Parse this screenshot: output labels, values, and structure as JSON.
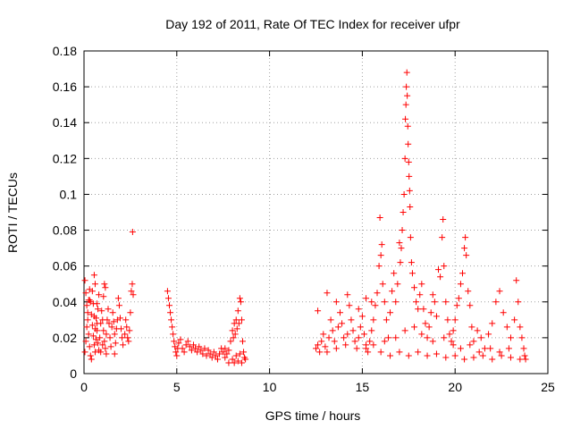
{
  "chart_data": {
    "type": "scatter",
    "title": "Day 192 of 2011, Rate Of TEC Index for receiver ufpr",
    "xlabel": "GPS time / hours",
    "ylabel": "ROTI / TECUs",
    "xlim": [
      0,
      25
    ],
    "ylim": [
      0,
      0.18
    ],
    "xticks": [
      0,
      5,
      10,
      15,
      20,
      25
    ],
    "yticks": [
      0,
      0.02,
      0.04,
      0.06,
      0.08,
      0.1,
      0.12,
      0.14,
      0.16,
      0.18
    ],
    "xtick_labels": [
      "0",
      "5",
      "10",
      "15",
      "20",
      "25"
    ],
    "ytick_labels": [
      "0",
      "0.02",
      "0.04",
      "0.06",
      "0.08",
      "0.1",
      "0.12",
      "0.14",
      "0.16",
      "0.18"
    ],
    "grid": true,
    "marker": "+",
    "color": "#ff0000",
    "series": [
      {
        "points": [
          [
            0.05,
            0.052
          ],
          [
            0.1,
            0.045
          ],
          [
            0.15,
            0.038
          ],
          [
            0.2,
            0.03
          ],
          [
            0.25,
            0.022
          ],
          [
            0.3,
            0.015
          ],
          [
            0.35,
            0.01
          ],
          [
            0.4,
            0.008
          ],
          [
            0.05,
            0.012
          ],
          [
            0.1,
            0.018
          ],
          [
            0.15,
            0.026
          ],
          [
            0.2,
            0.034
          ],
          [
            0.25,
            0.041
          ],
          [
            0.3,
            0.047
          ],
          [
            0.35,
            0.04
          ],
          [
            0.4,
            0.033
          ],
          [
            0.45,
            0.027
          ],
          [
            0.5,
            0.021
          ],
          [
            0.55,
            0.016
          ],
          [
            0.6,
            0.012
          ],
          [
            0.65,
            0.019
          ],
          [
            0.7,
            0.028
          ],
          [
            0.75,
            0.036
          ],
          [
            0.8,
            0.044
          ],
          [
            0.45,
            0.046
          ],
          [
            0.5,
            0.039
          ],
          [
            0.55,
            0.032
          ],
          [
            0.6,
            0.025
          ],
          [
            0.65,
            0.031
          ],
          [
            0.7,
            0.024
          ],
          [
            0.75,
            0.017
          ],
          [
            0.8,
            0.013
          ],
          [
            0.85,
            0.02
          ],
          [
            0.9,
            0.028
          ],
          [
            0.95,
            0.035
          ],
          [
            1.0,
            0.03
          ],
          [
            1.05,
            0.024
          ],
          [
            1.1,
            0.018
          ],
          [
            1.15,
            0.014
          ],
          [
            1.2,
            0.022
          ],
          [
            0.55,
            0.055
          ],
          [
            0.6,
            0.05
          ],
          [
            0.9,
            0.012
          ],
          [
            1.0,
            0.016
          ],
          [
            1.1,
            0.05
          ],
          [
            1.15,
            0.048
          ],
          [
            1.25,
            0.03
          ],
          [
            1.3,
            0.036
          ],
          [
            1.35,
            0.028
          ],
          [
            1.4,
            0.02
          ],
          [
            1.45,
            0.015
          ],
          [
            1.5,
            0.026
          ],
          [
            1.55,
            0.034
          ],
          [
            1.6,
            0.029
          ],
          [
            1.65,
            0.022
          ],
          [
            1.7,
            0.017
          ],
          [
            1.75,
            0.025
          ],
          [
            1.8,
            0.03
          ],
          [
            1.85,
            0.042
          ],
          [
            1.9,
            0.038
          ],
          [
            1.95,
            0.031
          ],
          [
            2.0,
            0.025
          ],
          [
            2.05,
            0.02
          ],
          [
            2.1,
            0.016
          ],
          [
            2.2,
            0.022
          ],
          [
            2.25,
            0.03
          ],
          [
            2.3,
            0.026
          ],
          [
            2.35,
            0.02
          ],
          [
            2.4,
            0.018
          ],
          [
            2.45,
            0.024
          ],
          [
            2.5,
            0.034
          ],
          [
            2.55,
            0.046
          ],
          [
            2.6,
            0.05
          ],
          [
            2.62,
            0.079
          ],
          [
            2.65,
            0.044
          ],
          [
            1.65,
            0.011
          ],
          [
            1.2,
            0.011
          ],
          [
            0.3,
            0.041
          ],
          [
            0.7,
            0.039
          ],
          [
            1.05,
            0.043
          ],
          [
            4.5,
            0.046
          ],
          [
            4.55,
            0.042
          ],
          [
            4.6,
            0.038
          ],
          [
            4.65,
            0.034
          ],
          [
            4.7,
            0.03
          ],
          [
            4.75,
            0.026
          ],
          [
            4.8,
            0.022
          ],
          [
            4.85,
            0.018
          ],
          [
            4.9,
            0.015
          ],
          [
            4.95,
            0.012
          ],
          [
            5.0,
            0.01
          ],
          [
            5.05,
            0.014
          ],
          [
            5.1,
            0.017
          ],
          [
            5.2,
            0.019
          ],
          [
            5.3,
            0.014
          ],
          [
            5.4,
            0.012
          ],
          [
            5.5,
            0.016
          ],
          [
            5.6,
            0.018
          ],
          [
            5.7,
            0.015
          ],
          [
            5.8,
            0.013
          ],
          [
            5.9,
            0.016
          ],
          [
            6.0,
            0.014
          ],
          [
            6.1,
            0.012
          ],
          [
            6.2,
            0.015
          ],
          [
            6.3,
            0.013
          ],
          [
            6.4,
            0.011
          ],
          [
            6.5,
            0.014
          ],
          [
            6.6,
            0.01
          ],
          [
            6.7,
            0.013
          ],
          [
            6.8,
            0.011
          ],
          [
            6.9,
            0.009
          ],
          [
            7.0,
            0.012
          ],
          [
            7.1,
            0.01
          ],
          [
            7.2,
            0.008
          ],
          [
            7.3,
            0.011
          ],
          [
            7.4,
            0.014
          ],
          [
            7.5,
            0.012
          ],
          [
            7.6,
            0.009
          ],
          [
            7.7,
            0.011
          ],
          [
            7.8,
            0.013
          ],
          [
            7.9,
            0.018
          ],
          [
            8.0,
            0.024
          ],
          [
            8.05,
            0.02
          ],
          [
            8.1,
            0.028
          ],
          [
            8.15,
            0.022
          ],
          [
            8.2,
            0.03
          ],
          [
            8.25,
            0.025
          ],
          [
            8.3,
            0.035
          ],
          [
            8.35,
            0.028
          ],
          [
            8.4,
            0.042
          ],
          [
            8.45,
            0.04
          ],
          [
            8.5,
            0.03
          ],
          [
            8.55,
            0.018
          ],
          [
            8.6,
            0.012
          ],
          [
            8.65,
            0.009
          ],
          [
            8.7,
            0.008
          ],
          [
            8.0,
            0.008
          ],
          [
            8.1,
            0.006
          ],
          [
            8.2,
            0.01
          ],
          [
            8.3,
            0.007
          ],
          [
            8.4,
            0.011
          ],
          [
            8.5,
            0.006
          ],
          [
            7.8,
            0.006
          ],
          [
            7.6,
            0.014
          ],
          [
            12.5,
            0.014
          ],
          [
            12.6,
            0.016
          ],
          [
            12.7,
            0.012
          ],
          [
            12.8,
            0.018
          ],
          [
            12.9,
            0.022
          ],
          [
            13.0,
            0.015
          ],
          [
            13.1,
            0.012
          ],
          [
            13.2,
            0.02
          ],
          [
            13.3,
            0.03
          ],
          [
            13.4,
            0.024
          ],
          [
            13.5,
            0.018
          ],
          [
            13.6,
            0.014
          ],
          [
            13.7,
            0.026
          ],
          [
            13.8,
            0.034
          ],
          [
            13.9,
            0.028
          ],
          [
            14.0,
            0.02
          ],
          [
            14.1,
            0.016
          ],
          [
            14.2,
            0.022
          ],
          [
            14.3,
            0.038
          ],
          [
            14.4,
            0.03
          ],
          [
            14.5,
            0.024
          ],
          [
            14.6,
            0.018
          ],
          [
            14.7,
            0.014
          ],
          [
            14.8,
            0.02
          ],
          [
            14.9,
            0.026
          ],
          [
            15.0,
            0.032
          ],
          [
            15.1,
            0.022
          ],
          [
            15.2,
            0.016
          ],
          [
            15.3,
            0.012
          ],
          [
            15.4,
            0.018
          ],
          [
            15.5,
            0.024
          ],
          [
            15.6,
            0.03
          ],
          [
            12.6,
            0.035
          ],
          [
            13.1,
            0.045
          ],
          [
            13.6,
            0.04
          ],
          [
            14.2,
            0.044
          ],
          [
            14.8,
            0.036
          ],
          [
            15.2,
            0.042
          ],
          [
            15.5,
            0.04
          ],
          [
            15.7,
            0.038
          ],
          [
            15.8,
            0.045
          ],
          [
            15.9,
            0.06
          ],
          [
            15.95,
            0.087
          ],
          [
            16.0,
            0.066
          ],
          [
            16.05,
            0.072
          ],
          [
            16.1,
            0.05
          ],
          [
            16.2,
            0.04
          ],
          [
            16.3,
            0.03
          ],
          [
            16.4,
            0.02
          ],
          [
            16.5,
            0.034
          ],
          [
            16.6,
            0.046
          ],
          [
            16.7,
            0.056
          ],
          [
            16.8,
            0.04
          ],
          [
            16.9,
            0.05
          ],
          [
            17.0,
            0.073
          ],
          [
            17.05,
            0.062
          ],
          [
            17.1,
            0.07
          ],
          [
            17.15,
            0.08
          ],
          [
            17.2,
            0.09
          ],
          [
            17.25,
            0.1
          ],
          [
            17.3,
            0.12
          ],
          [
            17.32,
            0.142
          ],
          [
            17.35,
            0.15
          ],
          [
            17.37,
            0.16
          ],
          [
            17.4,
            0.168
          ],
          [
            17.42,
            0.155
          ],
          [
            17.45,
            0.138
          ],
          [
            17.47,
            0.128
          ],
          [
            17.5,
            0.118
          ],
          [
            17.52,
            0.11
          ],
          [
            17.55,
            0.102
          ],
          [
            17.57,
            0.093
          ],
          [
            17.6,
            0.076
          ],
          [
            17.65,
            0.062
          ],
          [
            17.7,
            0.056
          ],
          [
            17.8,
            0.048
          ],
          [
            17.9,
            0.04
          ],
          [
            18.0,
            0.036
          ],
          [
            18.1,
            0.044
          ],
          [
            18.2,
            0.05
          ],
          [
            18.3,
            0.036
          ],
          [
            18.4,
            0.028
          ],
          [
            18.5,
            0.02
          ],
          [
            18.6,
            0.026
          ],
          [
            18.7,
            0.034
          ],
          [
            18.8,
            0.044
          ],
          [
            18.9,
            0.04
          ],
          [
            19.0,
            0.032
          ],
          [
            19.1,
            0.058
          ],
          [
            19.2,
            0.054
          ],
          [
            19.3,
            0.076
          ],
          [
            19.35,
            0.086
          ],
          [
            19.4,
            0.06
          ],
          [
            19.5,
            0.04
          ],
          [
            19.6,
            0.03
          ],
          [
            19.7,
            0.022
          ],
          [
            19.8,
            0.018
          ],
          [
            19.9,
            0.024
          ],
          [
            20.0,
            0.03
          ],
          [
            20.1,
            0.038
          ],
          [
            20.2,
            0.042
          ],
          [
            20.3,
            0.05
          ],
          [
            20.4,
            0.056
          ],
          [
            20.5,
            0.07
          ],
          [
            20.55,
            0.076
          ],
          [
            20.6,
            0.066
          ],
          [
            20.7,
            0.046
          ],
          [
            20.8,
            0.038
          ],
          [
            20.9,
            0.026
          ],
          [
            21.0,
            0.018
          ],
          [
            21.2,
            0.024
          ],
          [
            21.4,
            0.02
          ],
          [
            21.6,
            0.014
          ],
          [
            21.8,
            0.022
          ],
          [
            22.0,
            0.028
          ],
          [
            22.2,
            0.04
          ],
          [
            22.4,
            0.046
          ],
          [
            22.6,
            0.034
          ],
          [
            22.8,
            0.026
          ],
          [
            23.0,
            0.02
          ],
          [
            23.2,
            0.03
          ],
          [
            23.3,
            0.052
          ],
          [
            23.4,
            0.04
          ],
          [
            23.5,
            0.026
          ],
          [
            23.6,
            0.02
          ],
          [
            23.7,
            0.014
          ],
          [
            23.75,
            0.01
          ],
          [
            23.8,
            0.008
          ],
          [
            16.0,
            0.012
          ],
          [
            16.5,
            0.01
          ],
          [
            17.0,
            0.012
          ],
          [
            17.5,
            0.01
          ],
          [
            18.0,
            0.012
          ],
          [
            18.5,
            0.01
          ],
          [
            19.0,
            0.011
          ],
          [
            19.5,
            0.009
          ],
          [
            20.0,
            0.01
          ],
          [
            20.5,
            0.008
          ],
          [
            21.0,
            0.009
          ],
          [
            21.5,
            0.01
          ],
          [
            22.0,
            0.008
          ],
          [
            22.5,
            0.01
          ],
          [
            23.0,
            0.009
          ],
          [
            23.5,
            0.008
          ],
          [
            15.2,
            0.014
          ],
          [
            15.6,
            0.016
          ],
          [
            16.2,
            0.018
          ],
          [
            16.8,
            0.02
          ],
          [
            17.3,
            0.024
          ],
          [
            17.8,
            0.026
          ],
          [
            18.2,
            0.022
          ],
          [
            18.8,
            0.018
          ],
          [
            19.4,
            0.02
          ],
          [
            19.9,
            0.016
          ],
          [
            20.3,
            0.014
          ],
          [
            20.8,
            0.016
          ],
          [
            21.3,
            0.012
          ],
          [
            21.9,
            0.014
          ],
          [
            22.4,
            0.012
          ],
          [
            22.9,
            0.014
          ]
        ]
      }
    ]
  }
}
